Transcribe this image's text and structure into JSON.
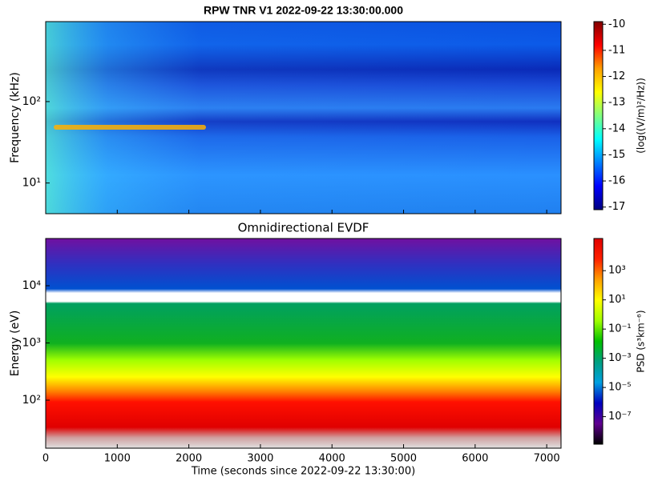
{
  "chart_data": [
    {
      "type": "spectrogram",
      "title": "RPW TNR V1 2022-09-22 13:30:00.000",
      "ylabel": "Frequency (kHz)",
      "xlim": [
        0,
        7200
      ],
      "xticks": [
        0,
        1000,
        2000,
        3000,
        4000,
        5000,
        6000,
        7000
      ],
      "xtick_labels": false,
      "ylim": [
        4.2,
        960
      ],
      "yscale": "log",
      "yticks": [
        {
          "value": 10,
          "label": "10¹"
        },
        {
          "value": 100,
          "label": "10²"
        }
      ],
      "colorbar": {
        "label": "(log((V/m)²/Hz))",
        "lim": [
          -17.1,
          -9.9
        ],
        "scale": "linear",
        "ticks": [
          -10,
          -11,
          -12,
          -13,
          -14,
          -15,
          -16,
          -17
        ],
        "colors": [
          "#800000",
          "#ff0000",
          "#ffa000",
          "#ffff00",
          "#80ff80",
          "#00ffff",
          "#0080ff",
          "#0000ff",
          "#000080"
        ]
      }
    },
    {
      "type": "spectrogram",
      "title": "Omnidirectional EVDF",
      "ylabel": "Energy (eV)",
      "xlabel": "Time (seconds since 2022-09-22 13:30:00)",
      "xlim": [
        0,
        7200
      ],
      "xticks": [
        0,
        1000,
        2000,
        3000,
        4000,
        5000,
        6000,
        7000
      ],
      "xtick_labels": true,
      "ylim": [
        14.5,
        66800
      ],
      "yscale": "log",
      "yticks": [
        {
          "value": 100,
          "label": "10²"
        },
        {
          "value": 1000,
          "label": "10³"
        },
        {
          "value": 10000,
          "label": "10⁴"
        }
      ],
      "colorbar": {
        "label": "PSD (s³km⁻⁶)",
        "lim": [
          1.3e-09,
          160000.0
        ],
        "scale": "log",
        "ticks": [
          {
            "value": 1000,
            "label": "10³"
          },
          {
            "value": 10,
            "label": "10¹"
          },
          {
            "value": 0.1,
            "label": "10⁻¹"
          },
          {
            "value": 0.001,
            "label": "10⁻³"
          },
          {
            "value": 1e-05,
            "label": "10⁻⁵"
          },
          {
            "value": 1e-07,
            "label": "10⁻⁷"
          }
        ],
        "colors": [
          "#e00000",
          "#ff2000",
          "#ffa000",
          "#ffff00",
          "#a0ff00",
          "#00c000",
          "#00a080",
          "#00a0e0",
          "#0000c0",
          "#600090",
          "#000000"
        ]
      }
    }
  ]
}
